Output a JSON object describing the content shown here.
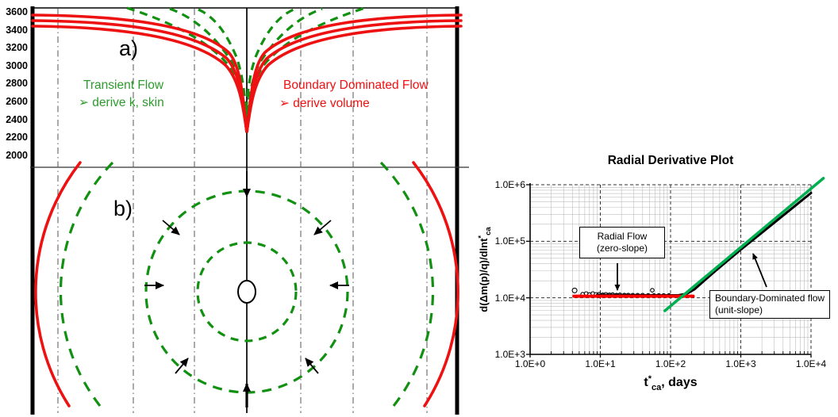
{
  "figure": {
    "panel_a_label": "a)",
    "panel_b_label": "b)",
    "pressure_axis_ticks": [
      "3600",
      "3400",
      "3200",
      "3000",
      "2800",
      "2600",
      "2400",
      "2200",
      "2000"
    ],
    "transient_flow": {
      "title": "Transient Flow",
      "bullet": "➢  derive k, skin"
    },
    "boundary_flow": {
      "title": "Boundary Dominated Flow",
      "bullet": "➢  derive volume"
    }
  },
  "chart": {
    "title": "Radial Derivative Plot",
    "y_ticks": [
      "1.0E+6",
      "1.0E+5",
      "1.0E+4",
      "1.0E+3"
    ],
    "x_ticks": [
      "1.0E+0",
      "1.0E+1",
      "1.0E+2",
      "1.0E+3",
      "1.0E+4"
    ],
    "ylabel": {
      "pre": "d(Δm(p)/q)/dlnt",
      "sup": "*",
      "sub": "ca"
    },
    "xlabel": {
      "pre": "t",
      "sup": "*",
      "sub": "ca",
      "post": ", days"
    },
    "annotation_radial": {
      "line1": "Radial Flow",
      "line2": "(zero-slope)"
    },
    "annotation_boundary": {
      "line1": "Boundary-Dominated flow",
      "line2": "(unit-slope)"
    }
  },
  "colors": {
    "diagram_green": "#119011",
    "diagram_red": "#ee1111",
    "chart_green": "#00b050",
    "chart_red": "#ff0000",
    "black": "#000000"
  },
  "chart_data": {
    "type": "scatter",
    "title": "Radial Derivative Plot",
    "xlabel": "t*ca, days",
    "ylabel": "d(Δm(p)/q)/dlnt*ca",
    "x_scale": "log",
    "y_scale": "log",
    "xlim": [
      1,
      10000
    ],
    "ylim": [
      1000,
      1000000
    ],
    "grid": "log minor gray + dashed major",
    "series": [
      {
        "name": "pressure-derivative-points",
        "type": "scatter",
        "marker": "open-circle",
        "color": "#000000",
        "points": [
          [
            4.3,
            13500
          ],
          [
            5.6,
            11600
          ],
          [
            6.3,
            11900
          ],
          [
            7,
            11400
          ],
          [
            7.8,
            11900
          ],
          [
            8.7,
            11500
          ],
          [
            9.6,
            11600
          ],
          [
            10.8,
            11300
          ],
          [
            12,
            11500
          ],
          [
            13.5,
            11300
          ],
          [
            15,
            11400
          ],
          [
            17,
            11200
          ],
          [
            19,
            11300
          ],
          [
            22,
            11200
          ],
          [
            25,
            11200
          ],
          [
            29,
            11100
          ],
          [
            34,
            11100
          ],
          [
            40,
            11100
          ],
          [
            48,
            11050
          ],
          [
            55,
            13600
          ],
          [
            58,
            11000
          ],
          [
            68,
            11000
          ],
          [
            80,
            11000
          ],
          [
            95,
            11000
          ]
        ]
      },
      {
        "name": "pressure-derivative-trend",
        "type": "line",
        "color": "#000000",
        "width": 3,
        "points": [
          [
            9,
            11300
          ],
          [
            30,
            11150
          ],
          [
            80,
            11050
          ],
          [
            130,
            11100
          ],
          [
            170,
            11800
          ],
          [
            220,
            14200
          ],
          [
            300,
            20000
          ],
          [
            450,
            31000
          ],
          [
            700,
            49000
          ],
          [
            1000,
            71000
          ],
          [
            1800,
            128000
          ],
          [
            3200,
            228000
          ],
          [
            5600,
            400000
          ],
          [
            10000,
            715000
          ]
        ]
      },
      {
        "name": "radial-flow-zero-slope-line",
        "type": "line",
        "color": "#ff0000",
        "width": 4,
        "points": [
          [
            4.2,
            10700
          ],
          [
            210,
            10700
          ]
        ]
      },
      {
        "name": "boundary-dominated-unit-slope-line",
        "type": "line",
        "color": "#00b050",
        "width": 3.5,
        "points": [
          [
            83,
            5900
          ],
          [
            15000,
            1300000
          ]
        ]
      }
    ]
  }
}
